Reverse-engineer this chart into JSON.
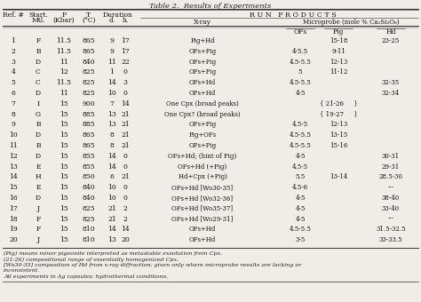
{
  "title": "Table 2.  Results of Experiments",
  "bg": "#f0ede8",
  "rows": [
    [
      "1",
      "F",
      "11.5",
      "865",
      "9",
      "17",
      "Pig+Hd",
      "",
      "15-18",
      "23-25"
    ],
    [
      "2",
      "B",
      "11.5",
      "865",
      "9",
      "17",
      "OFs+Pig",
      "4-5.5",
      "9-11",
      ""
    ],
    [
      "3",
      "D",
      "11",
      "840",
      "11",
      "22",
      "OFs+Pig",
      "4.5-5.5",
      "12-13",
      ""
    ],
    [
      "4",
      "C",
      "12",
      "825",
      "1",
      "0",
      "OFs+Pig",
      "5",
      "11-12",
      ""
    ],
    [
      "5",
      "C",
      "11.5",
      "825",
      "14",
      "3",
      "OFs+Hd",
      "4.5-5.5",
      "",
      "32-35"
    ],
    [
      "6",
      "D",
      "11",
      "825",
      "10",
      "0",
      "OFs+Hd",
      "4-5",
      "",
      "32-34"
    ],
    [
      "7",
      "I",
      "15",
      "900",
      "7",
      "14",
      "One Cpx (broad peaks)",
      "",
      "{ 21-26     }",
      ""
    ],
    [
      "8",
      "G",
      "15",
      "885",
      "13",
      "21",
      "One Cpx? (broad peaks)",
      "",
      "{ 19-27     }",
      ""
    ],
    [
      "9",
      "B",
      "15",
      "885",
      "13",
      "21",
      "OFs+Pig",
      "4.5-5",
      "12-13",
      ""
    ],
    [
      "10",
      "D",
      "15",
      "865",
      "8",
      "21",
      "Pig+OFs",
      "4.5-5.5",
      "13-15",
      ""
    ],
    [
      "11",
      "B",
      "15",
      "865",
      "8",
      "21",
      "OFs+Pig",
      "4.5-5.5",
      "15-16",
      ""
    ],
    [
      "12",
      "D",
      "15",
      "855",
      "14",
      "0",
      "OFs+Hd; (hint of Pig)",
      "4-5",
      "",
      "30-31"
    ],
    [
      "13",
      "E",
      "15",
      "855",
      "14",
      "0",
      "OFs+Hd (+Pig)",
      "4.5-5",
      "",
      "29-31"
    ],
    [
      "14",
      "H",
      "15",
      "850",
      "6",
      "21",
      "Hd+Cpx (+Pig)",
      "5.5",
      "13-14",
      "28.5-30"
    ],
    [
      "15",
      "E",
      "15",
      "840",
      "10",
      "0",
      "OFs+Hd [Wo30-35]",
      "4.5-6",
      "",
      "---"
    ],
    [
      "16",
      "D",
      "15",
      "840",
      "10",
      "0",
      "OFs+Hd [Wo32-36]",
      "4-5",
      "",
      "38-40"
    ],
    [
      "17",
      "J",
      "15",
      "825",
      "21",
      "2",
      "OFs+Hd [Wo35-37]",
      "4-5",
      "",
      "33-40"
    ],
    [
      "18",
      "F",
      "15",
      "825",
      "21",
      "2",
      "OFs+Hd [Wo29-31]",
      "4-5",
      "",
      "---"
    ],
    [
      "19",
      "F",
      "15",
      "810",
      "14",
      "14",
      "OFs+Hd",
      "4.5-5.5",
      "",
      "31.5-32.5"
    ],
    [
      "20",
      "J",
      "15",
      "810",
      "13",
      "20",
      "OFs+Hd",
      "3-5",
      "",
      "33-33.5"
    ]
  ],
  "footnotes": [
    "(Pig) means minor pigeonite interpreted as metastable exsolution from Cpx.",
    "(21-26) compositional range of essentially homogenized Cpx.",
    "[Wo30-35] composition of Hd from x-ray diffraction; given only where microprobe results are lacking or",
    "inconsistent.",
    "All experiments in Ag capsules; hydrothermal conditions."
  ]
}
